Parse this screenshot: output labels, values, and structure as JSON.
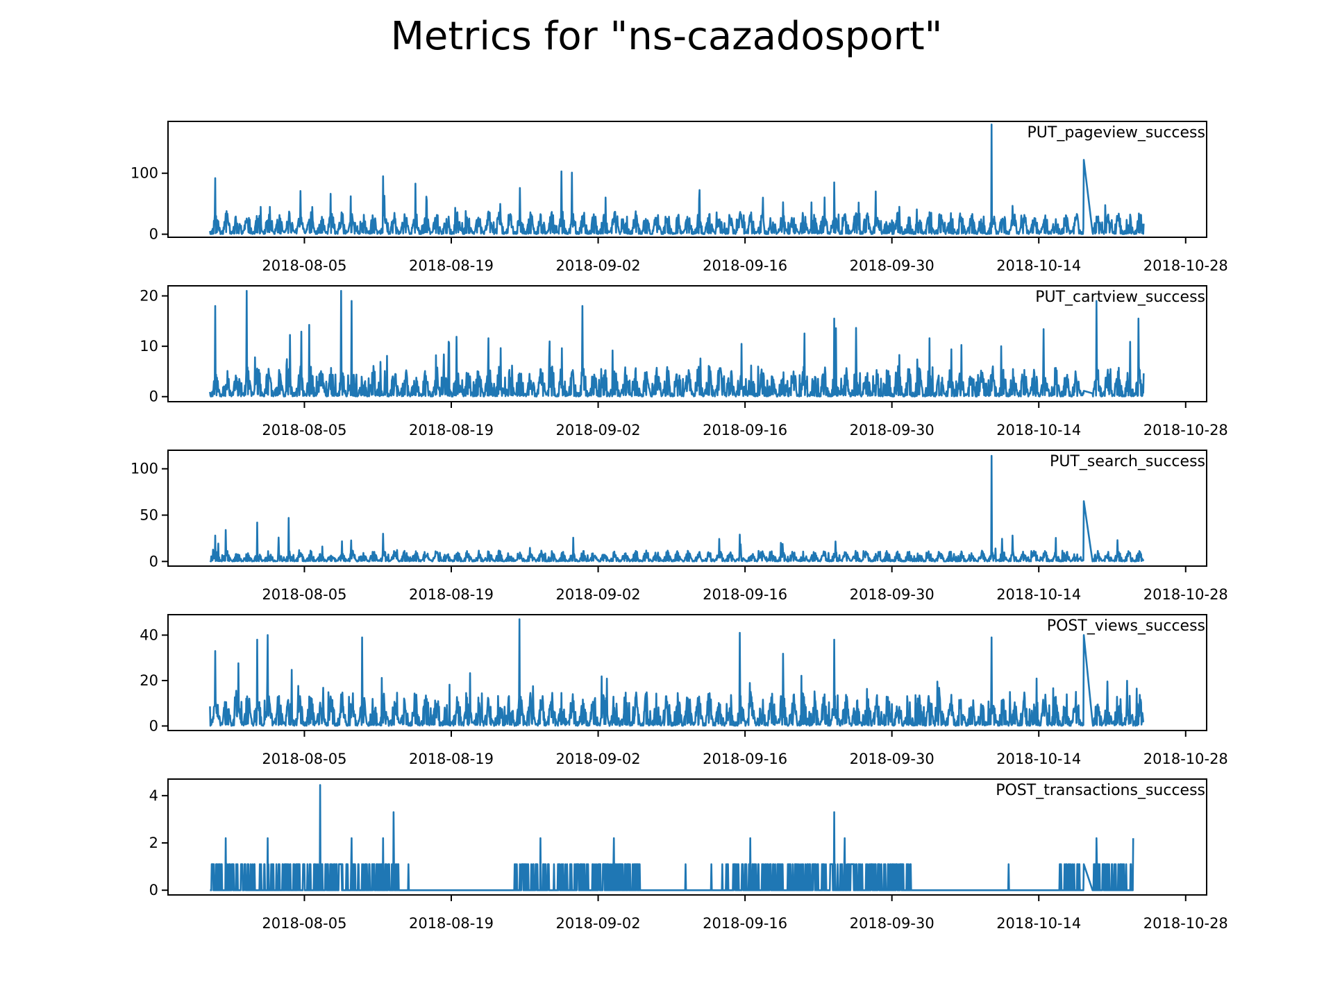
{
  "title": "Metrics for \"ns-cazadosport\"",
  "colors": {
    "line": "#1f77b4",
    "axis": "#000000",
    "background": "#ffffff"
  },
  "chart_data": [
    {
      "type": "line",
      "label": "PUT_pageview_success",
      "xlim": [
        "2018-07-23",
        "2018-10-30"
      ],
      "ylim": [
        -5,
        185
      ],
      "yticks": [
        0,
        100
      ],
      "xticks": [
        "2018-08-05",
        "2018-08-19",
        "2018-09-02",
        "2018-09-16",
        "2018-09-30",
        "2018-10-14",
        "2018-10-28"
      ],
      "series": [
        {
          "values": {
            "start": "2018-07-27",
            "end": "2018-10-24",
            "base": 20,
            "noise": 26,
            "spike_prob": 0.03,
            "spike_scale": 1.9,
            "spikes": [
              [
                "2018-07-27",
                92
              ],
              [
                "2018-08-12",
                95
              ],
              [
                "2018-08-29",
                103
              ],
              [
                "2018-08-30",
                101
              ],
              [
                "2018-09-24",
                85
              ],
              [
                "2018-10-09",
                180
              ],
              [
                "2018-10-18",
                122
              ]
            ],
            "gap": [
              "2018-10-18",
              "2018-10-19"
            ]
          }
        }
      ]
    },
    {
      "type": "line",
      "label": "PUT_cartview_success",
      "xlim": [
        "2018-07-23",
        "2018-10-30"
      ],
      "ylim": [
        -1,
        22
      ],
      "yticks": [
        0,
        10,
        20
      ],
      "xticks": [
        "2018-08-05",
        "2018-08-19",
        "2018-09-02",
        "2018-09-16",
        "2018-09-30",
        "2018-10-14",
        "2018-10-28"
      ],
      "series": [
        {
          "values": {
            "start": "2018-07-27",
            "end": "2018-10-24",
            "base": 2,
            "noise": 5,
            "spike_prob": 0.05,
            "spike_scale": 2.2,
            "spikes": [
              [
                "2018-07-27",
                18
              ],
              [
                "2018-07-30",
                21
              ],
              [
                "2018-08-08",
                21
              ],
              [
                "2018-08-09",
                19
              ],
              [
                "2018-08-31",
                18
              ],
              [
                "2018-09-24",
                15.5
              ],
              [
                "2018-10-19",
                19
              ],
              [
                "2018-10-23",
                15.5
              ]
            ],
            "gap": [
              "2018-10-18",
              "2018-10-19"
            ]
          }
        }
      ]
    },
    {
      "type": "line",
      "label": "PUT_search_success",
      "xlim": [
        "2018-07-23",
        "2018-10-30"
      ],
      "ylim": [
        -5,
        120
      ],
      "yticks": [
        0,
        50,
        100
      ],
      "xticks": [
        "2018-08-05",
        "2018-08-19",
        "2018-09-02",
        "2018-09-16",
        "2018-09-30",
        "2018-10-14",
        "2018-10-28"
      ],
      "series": [
        {
          "values": {
            "start": "2018-07-27",
            "end": "2018-10-24",
            "base": 5,
            "noise": 9,
            "spike_prob": 0.03,
            "spike_scale": 1.9,
            "spikes": [
              [
                "2018-07-27",
                28
              ],
              [
                "2018-07-28",
                34
              ],
              [
                "2018-07-31",
                42
              ],
              [
                "2018-08-03",
                47
              ],
              [
                "2018-08-12",
                30
              ],
              [
                "2018-09-15",
                29
              ],
              [
                "2018-10-09",
                114
              ],
              [
                "2018-10-11",
                28
              ],
              [
                "2018-10-18",
                65
              ],
              [
                "2018-10-21",
                23
              ]
            ],
            "gap": [
              "2018-10-18",
              "2018-10-19"
            ]
          }
        }
      ]
    },
    {
      "type": "line",
      "label": "POST_views_success",
      "xlim": [
        "2018-07-23",
        "2018-10-30"
      ],
      "ylim": [
        -2,
        49
      ],
      "yticks": [
        0,
        20,
        40
      ],
      "xticks": [
        "2018-08-05",
        "2018-08-19",
        "2018-09-02",
        "2018-09-16",
        "2018-09-30",
        "2018-10-14",
        "2018-10-28"
      ],
      "series": [
        {
          "values": {
            "start": "2018-07-27",
            "end": "2018-10-24",
            "base": 6,
            "noise": 12,
            "spike_prob": 0.03,
            "spike_scale": 1.9,
            "spikes": [
              [
                "2018-07-27",
                33
              ],
              [
                "2018-07-31",
                38
              ],
              [
                "2018-08-01",
                40
              ],
              [
                "2018-08-10",
                39
              ],
              [
                "2018-08-25",
                47
              ],
              [
                "2018-09-15",
                41
              ],
              [
                "2018-09-24",
                38
              ],
              [
                "2018-10-09",
                39
              ],
              [
                "2018-10-18",
                40
              ]
            ],
            "gap": [
              "2018-10-18",
              "2018-10-19"
            ]
          }
        }
      ]
    },
    {
      "type": "line",
      "label": "POST_transactions_success",
      "xlim": [
        "2018-07-23",
        "2018-10-30"
      ],
      "ylim": [
        -0.2,
        4.7
      ],
      "yticks": [
        0,
        2,
        4
      ],
      "xticks": [
        "2018-08-05",
        "2018-08-19",
        "2018-09-02",
        "2018-09-16",
        "2018-09-30",
        "2018-10-14",
        "2018-10-28"
      ],
      "series": [
        {
          "values": {
            "start": "2018-07-27",
            "end": "2018-10-23",
            "base": 0,
            "noise": 0,
            "event_value": 1.1,
            "event_prob": 0.35,
            "quiet": [
              [
                "2018-08-14",
                "2018-08-25"
              ],
              [
                "2018-09-06",
                "2018-09-14"
              ],
              [
                "2018-10-02",
                "2018-10-16"
              ]
            ],
            "spikes": [
              [
                "2018-07-28",
                2.2
              ],
              [
                "2018-08-01",
                2.2
              ],
              [
                "2018-08-06",
                4.45
              ],
              [
                "2018-08-09",
                2.2
              ],
              [
                "2018-08-12",
                2.2
              ],
              [
                "2018-08-13",
                3.3
              ],
              [
                "2018-08-27",
                2.2
              ],
              [
                "2018-09-03",
                2.2
              ],
              [
                "2018-09-16",
                2.2
              ],
              [
                "2018-09-24",
                3.3
              ],
              [
                "2018-09-25",
                2.2
              ],
              [
                "2018-10-19",
                2.2
              ],
              [
                "2018-10-23",
                2.2
              ]
            ],
            "gap": [
              "2018-10-18",
              "2018-10-19"
            ]
          }
        }
      ]
    }
  ]
}
